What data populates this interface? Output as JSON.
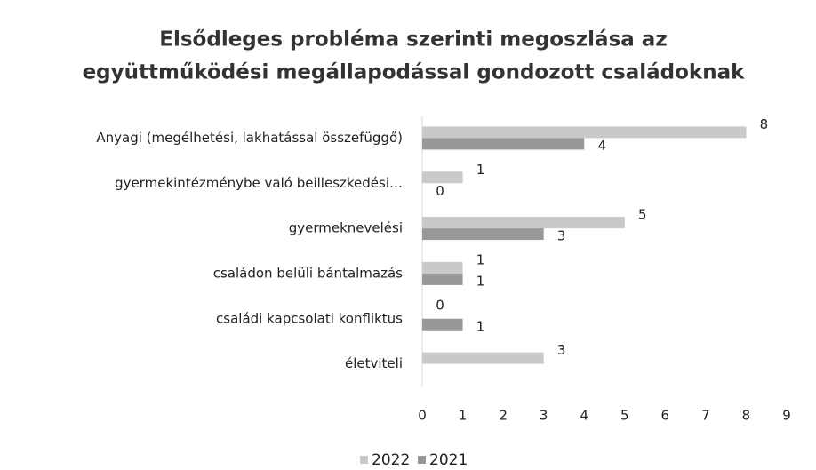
{
  "chart_data": {
    "type": "hbar",
    "title": [
      "Elsődleges probléma szerinti megoszlása az",
      "együttműködési megállapodással gondozott családoknak"
    ],
    "categories": [
      "Anyagi (megélhetési,  lakhatással összefüggő)",
      "gyermekintézménybe való beilleszkedési…",
      "gyermeknevelési",
      "családon belüli bántalmazás",
      "családi kapcsolati konfliktus",
      "életviteli"
    ],
    "series": [
      {
        "name": "2022",
        "color": "#c9c9c9",
        "values": [
          8,
          1,
          5,
          1,
          0,
          3
        ]
      },
      {
        "name": "2021",
        "color": "#989898",
        "values": [
          4,
          0,
          3,
          1,
          1,
          null
        ]
      }
    ],
    "xlim": [
      0,
      9
    ],
    "xticks": [
      0,
      1,
      2,
      3,
      4,
      5,
      6,
      7,
      8,
      9
    ],
    "grid": false,
    "legend": "bottom"
  }
}
